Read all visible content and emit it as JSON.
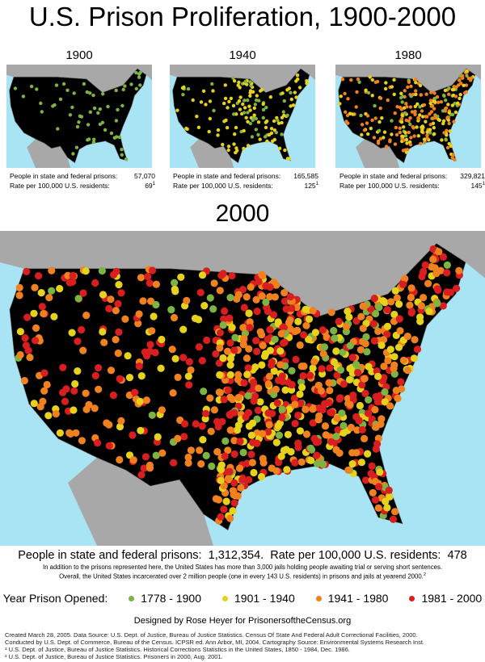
{
  "title": "U.S. Prison Proliferation, 1900-2000",
  "small_maps": [
    {
      "year": "1900",
      "stats": [
        {
          "label": "People in state and federal prisons:",
          "value": "57,070"
        },
        {
          "label": "Rate per 100,000 U.S. residents:",
          "value": "69",
          "note": "1"
        }
      ]
    },
    {
      "year": "1940",
      "stats": [
        {
          "label": "People in state and federal prisons:",
          "value": "165,585"
        },
        {
          "label": "Rate per 100,000 U.S. residents:",
          "value": "125",
          "note": "1"
        }
      ]
    },
    {
      "year": "1980",
      "stats": [
        {
          "label": "People in state and federal prisons:",
          "value": "329,821"
        },
        {
          "label": "Rate per 100,000 U.S. residents:",
          "value": "145",
          "note": "1"
        }
      ]
    }
  ],
  "big_map": {
    "year": "2000"
  },
  "summary": {
    "label1": "People in state and federal prisons:",
    "value1": "1,312,354.",
    "label2": "Rate per 100,000 U.S. residents:",
    "value2": "478"
  },
  "notes": [
    "In addition to the prisons represented here, the United States has more than 3,000 jails holding people awaiting trial or serving short sentences.",
    "Overall, the United States incarcerated over 2 million people (one in every 143 U.S. residents) in prisons and jails at yearend 2000."
  ],
  "notes_sup": "2",
  "legend": {
    "title": "Year Prison Opened:",
    "items": [
      {
        "label": "1778 - 1900",
        "color": "#7cb342"
      },
      {
        "label": "1901 - 1940",
        "color": "#e6d21a"
      },
      {
        "label": "1941 - 1980",
        "color": "#f0811e"
      },
      {
        "label": "1981 - 2000",
        "color": "#d81e1e"
      }
    ]
  },
  "credit": "Designed by Rose Heyer for PrisonersoftheCensus.org",
  "sources": [
    "Created March 28, 2005.  Data Source:  U.S. Dept. of Justice,  Bureau of Justice Statistics.  Census Of State And Federal Adult Correctional Facilities, 2000.",
    "Conducted by U.S. Dept. of Commerce, Bureau of the Census. ICPSR ed. Ann Arbor, MI, 2004. Cartography Source: Environmental Systems Research Inst.",
    "¹ U.S. Dept. of Justice,  Bureau of Justice Statistics.  Historical Corrections Statistics in the United States, 1850 - 1984, Dec. 1986.",
    "² U.S. Dept. of Justice,  Bureau of Justice Statistics.  Prisoners in 2000, Aug. 2001."
  ]
}
